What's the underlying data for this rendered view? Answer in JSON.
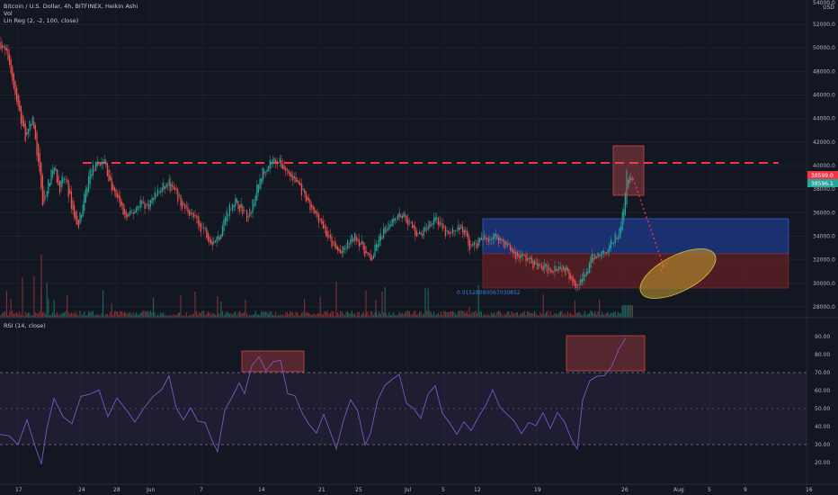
{
  "legend": {
    "title": "Bitcoin / U.S. Dollar, 4h, BITFINEX, Heikin Ashi",
    "volume": "Vol",
    "linreg": "Lin Reg (2, -2, 100, close)",
    "rsi": "RSI (14, close)"
  },
  "price_axis": {
    "unit": "USD",
    "top_label": "54000.0",
    "labels": [
      "52000.0",
      "50000.0",
      "48000.0",
      "46000.0",
      "44000.0",
      "42000.0",
      "40000.0",
      "38000.0",
      "36000.0",
      "34000.0",
      "32000.0",
      "30000.0",
      "28000.0"
    ],
    "values": [
      52000,
      50000,
      48000,
      46000,
      44000,
      42000,
      40000,
      38000,
      36000,
      34000,
      32000,
      30000,
      28000
    ],
    "badge_high": "38599.0",
    "badge_last": "38596.1"
  },
  "rsi_axis": {
    "labels": [
      "90.00",
      "80.00",
      "70.00",
      "60.00",
      "50.00",
      "40.00",
      "30.00",
      "20.00"
    ],
    "values": [
      90,
      80,
      70,
      60,
      50,
      40,
      30,
      20
    ]
  },
  "time_axis": {
    "labels": [
      "17",
      "24",
      "28",
      "Jun",
      "7",
      "14",
      "21",
      "25",
      "Jul",
      "5",
      "12",
      "19",
      "26",
      "Aug",
      "5",
      "9",
      "16"
    ]
  },
  "annotation": "0.01528080067030852",
  "colors": {
    "up": "#26a69a",
    "down": "#ef5350",
    "rsi_line": "#7e57c2",
    "blue_zone": "#1e3a8a",
    "red_zone": "#6b2126",
    "ellipse": "#c8a032",
    "resistance": "#f23645"
  },
  "chart_data": [
    {
      "type": "candlestick",
      "title": "Bitcoin / U.S. Dollar, 4h, BITFINEX, Heikin Ashi",
      "x": [
        "May 17",
        "May 24",
        "May 28",
        "Jun 1",
        "Jun 7",
        "Jun 14",
        "Jun 21",
        "Jun 25",
        "Jul 1",
        "Jul 5",
        "Jul 12",
        "Jul 19",
        "Jul 26"
      ],
      "close": [
        44000,
        37000,
        36000,
        36500,
        34000,
        40500,
        33000,
        32500,
        35000,
        34500,
        32500,
        30000,
        38596
      ],
      "ylim": [
        27000,
        54500
      ],
      "resistance_level": 40200,
      "zones": [
        {
          "name": "upper",
          "from": 32500,
          "to": 35500
        },
        {
          "name": "lower",
          "from": 29700,
          "to": 32500
        }
      ],
      "last_price": 38596.1,
      "high_marker": 38599.0
    },
    {
      "type": "line",
      "title": "RSI (14, close)",
      "x": [
        "May 17",
        "May 24",
        "May 28",
        "Jun 1",
        "Jun 7",
        "Jun 14",
        "Jun 21",
        "Jun 25",
        "Jul 1",
        "Jul 5",
        "Jul 12",
        "Jul 19",
        "Jul 26"
      ],
      "values": [
        30,
        50,
        55,
        45,
        35,
        78,
        35,
        40,
        55,
        45,
        40,
        28,
        90
      ],
      "ylim": [
        15,
        95
      ],
      "levels": [
        70,
        50,
        30
      ]
    }
  ]
}
